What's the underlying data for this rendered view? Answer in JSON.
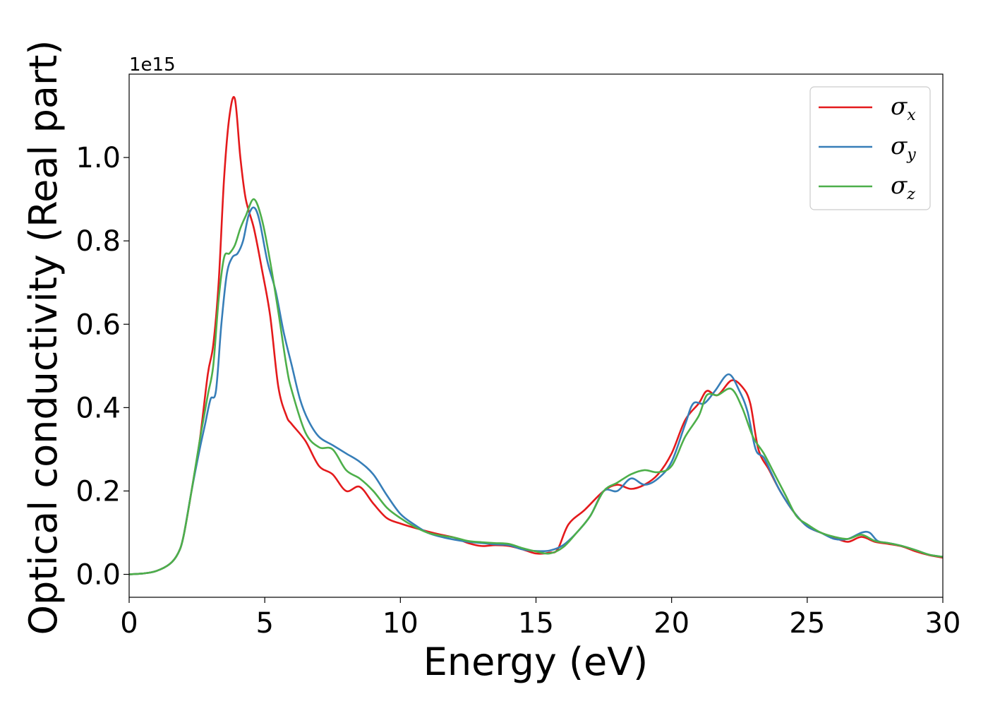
{
  "chart_data": {
    "type": "line",
    "title": "",
    "xlabel": "Energy (eV)",
    "ylabel": "Optical conductivity (Real part)",
    "y_offset_label": "1e15",
    "y_scale": 1000000000000000.0,
    "xlim": [
      0,
      30
    ],
    "ylim": [
      -0.055,
      1.2
    ],
    "xticks": [
      0,
      5,
      10,
      15,
      20,
      25,
      30
    ],
    "xtick_labels": [
      "0",
      "5",
      "10",
      "15",
      "20",
      "25",
      "30"
    ],
    "yticks": [
      0.0,
      0.2,
      0.4,
      0.6,
      0.8,
      1.0
    ],
    "ytick_labels": [
      "0.0",
      "0.2",
      "0.4",
      "0.6",
      "0.8",
      "1.0"
    ],
    "grid": false,
    "legend_position": "top-right",
    "series": [
      {
        "name": "σx",
        "symbol": "σ",
        "subscript": "x",
        "color": "#e41a1c",
        "x": [
          0,
          0.5,
          1.0,
          1.5,
          1.8,
          2.0,
          2.3,
          2.6,
          2.9,
          3.1,
          3.3,
          3.5,
          3.7,
          3.9,
          4.1,
          4.3,
          4.6,
          4.9,
          5.2,
          5.5,
          5.8,
          6.0,
          6.5,
          7.0,
          7.5,
          8.0,
          8.5,
          9.0,
          9.5,
          10.0,
          10.5,
          11.0,
          11.5,
          12.0,
          12.5,
          13.0,
          13.5,
          14.0,
          14.5,
          15.0,
          15.5,
          15.8,
          16.2,
          16.8,
          17.5,
          18.0,
          18.5,
          19.0,
          19.5,
          20.0,
          20.5,
          21.0,
          21.3,
          21.7,
          22.2,
          22.6,
          22.9,
          23.2,
          23.6,
          24.0,
          24.5,
          25.0,
          25.5,
          26.0,
          26.5,
          27.0,
          27.5,
          28.0,
          28.5,
          29.0,
          29.5,
          30.0
        ],
        "y": [
          0.0,
          0.002,
          0.008,
          0.025,
          0.05,
          0.09,
          0.2,
          0.32,
          0.48,
          0.55,
          0.7,
          0.95,
          1.1,
          1.14,
          1.0,
          0.9,
          0.83,
          0.73,
          0.62,
          0.45,
          0.38,
          0.36,
          0.32,
          0.26,
          0.24,
          0.2,
          0.21,
          0.17,
          0.135,
          0.122,
          0.112,
          0.103,
          0.095,
          0.088,
          0.075,
          0.068,
          0.07,
          0.068,
          0.06,
          0.05,
          0.052,
          0.06,
          0.12,
          0.155,
          0.2,
          0.215,
          0.205,
          0.215,
          0.24,
          0.29,
          0.37,
          0.41,
          0.44,
          0.43,
          0.465,
          0.45,
          0.41,
          0.3,
          0.25,
          0.2,
          0.15,
          0.115,
          0.1,
          0.088,
          0.078,
          0.09,
          0.078,
          0.073,
          0.067,
          0.055,
          0.046,
          0.04
        ]
      },
      {
        "name": "σy",
        "symbol": "σ",
        "subscript": "y",
        "color": "#377eb8",
        "x": [
          0,
          0.5,
          1.0,
          1.5,
          1.8,
          2.0,
          2.3,
          2.6,
          2.8,
          3.0,
          3.2,
          3.4,
          3.6,
          3.8,
          4.0,
          4.2,
          4.4,
          4.6,
          4.8,
          5.1,
          5.4,
          5.7,
          6.0,
          6.3,
          6.6,
          7.0,
          7.5,
          8.0,
          8.5,
          9.0,
          9.5,
          10.0,
          10.5,
          11.0,
          11.5,
          12.0,
          12.5,
          13.0,
          13.5,
          14.0,
          14.5,
          15.0,
          15.5,
          16.0,
          16.5,
          17.0,
          17.5,
          18.0,
          18.5,
          19.0,
          19.5,
          20.0,
          20.5,
          20.8,
          21.2,
          21.6,
          22.1,
          22.5,
          22.8,
          23.1,
          23.4,
          23.7,
          24.0,
          24.5,
          25.0,
          25.5,
          26.0,
          26.5,
          27.0,
          27.3,
          27.6,
          28.0,
          28.5,
          29.0,
          29.5,
          30.0
        ],
        "y": [
          0.0,
          0.002,
          0.008,
          0.025,
          0.05,
          0.09,
          0.2,
          0.3,
          0.36,
          0.42,
          0.44,
          0.6,
          0.72,
          0.76,
          0.77,
          0.8,
          0.86,
          0.88,
          0.85,
          0.75,
          0.68,
          0.58,
          0.5,
          0.42,
          0.37,
          0.33,
          0.31,
          0.29,
          0.27,
          0.24,
          0.19,
          0.145,
          0.12,
          0.1,
          0.09,
          0.083,
          0.078,
          0.075,
          0.072,
          0.07,
          0.06,
          0.056,
          0.057,
          0.07,
          0.1,
          0.14,
          0.2,
          0.2,
          0.23,
          0.215,
          0.23,
          0.27,
          0.36,
          0.41,
          0.41,
          0.44,
          0.48,
          0.44,
          0.39,
          0.3,
          0.28,
          0.24,
          0.2,
          0.15,
          0.115,
          0.1,
          0.085,
          0.085,
          0.1,
          0.1,
          0.08,
          0.075,
          0.068,
          0.058,
          0.047,
          0.042
        ]
      },
      {
        "name": "σz",
        "symbol": "σ",
        "subscript": "z",
        "color": "#4daf4a",
        "x": [
          0,
          0.5,
          1.0,
          1.5,
          1.8,
          2.0,
          2.3,
          2.6,
          2.9,
          3.1,
          3.3,
          3.5,
          3.7,
          3.9,
          4.1,
          4.3,
          4.6,
          4.9,
          5.2,
          5.5,
          5.8,
          6.0,
          6.5,
          7.0,
          7.5,
          8.0,
          8.5,
          9.0,
          9.5,
          10.0,
          10.5,
          11.0,
          11.5,
          12.0,
          12.5,
          13.0,
          13.5,
          14.0,
          14.5,
          15.0,
          15.5,
          16.0,
          16.5,
          17.0,
          17.5,
          18.0,
          18.5,
          19.0,
          19.5,
          20.0,
          20.5,
          21.0,
          21.3,
          21.7,
          22.2,
          22.6,
          23.0,
          23.4,
          23.8,
          24.2,
          24.6,
          25.0,
          25.5,
          26.0,
          26.5,
          27.0,
          27.5,
          28.0,
          28.5,
          29.0,
          29.5,
          30.0
        ],
        "y": [
          0.0,
          0.002,
          0.008,
          0.025,
          0.05,
          0.09,
          0.2,
          0.32,
          0.43,
          0.5,
          0.66,
          0.76,
          0.77,
          0.79,
          0.83,
          0.86,
          0.9,
          0.85,
          0.75,
          0.63,
          0.5,
          0.44,
          0.34,
          0.305,
          0.3,
          0.25,
          0.23,
          0.2,
          0.16,
          0.135,
          0.115,
          0.1,
          0.093,
          0.088,
          0.08,
          0.077,
          0.075,
          0.073,
          0.063,
          0.055,
          0.05,
          0.065,
          0.1,
          0.14,
          0.2,
          0.22,
          0.24,
          0.25,
          0.245,
          0.26,
          0.33,
          0.38,
          0.43,
          0.43,
          0.445,
          0.4,
          0.33,
          0.29,
          0.24,
          0.19,
          0.14,
          0.12,
          0.1,
          0.09,
          0.085,
          0.095,
          0.08,
          0.075,
          0.068,
          0.058,
          0.047,
          0.042
        ]
      }
    ]
  }
}
